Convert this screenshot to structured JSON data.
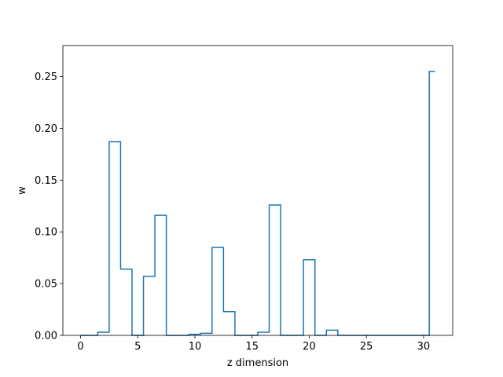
{
  "chart_data": {
    "type": "step",
    "title": "",
    "xlabel": "z dimension",
    "ylabel": "w",
    "xlim": [
      -1.55,
      32.55
    ],
    "ylim": [
      0,
      0.28
    ],
    "xticks": [
      0,
      5,
      10,
      15,
      20,
      25,
      30
    ],
    "xtick_labels": [
      "0",
      "5",
      "10",
      "15",
      "20",
      "25",
      "30"
    ],
    "yticks": [
      0.0,
      0.05,
      0.1,
      0.15,
      0.2,
      0.25
    ],
    "ytick_labels": [
      "0.00",
      "0.05",
      "0.10",
      "0.15",
      "0.20",
      "0.25"
    ],
    "step_where": "mid",
    "x": [
      0,
      1,
      2,
      3,
      4,
      5,
      6,
      7,
      8,
      9,
      10,
      11,
      12,
      13,
      14,
      15,
      16,
      17,
      18,
      19,
      20,
      21,
      22,
      23,
      24,
      25,
      26,
      27,
      28,
      29,
      30,
      31
    ],
    "values": [
      0.0,
      0.0,
      0.003,
      0.187,
      0.064,
      0.0,
      0.057,
      0.116,
      0.0,
      0.0,
      0.001,
      0.002,
      0.085,
      0.023,
      0.0,
      0.0,
      0.003,
      0.126,
      0.0,
      0.0,
      0.073,
      0.0,
      0.005,
      0.0,
      0.0,
      0.0,
      0.0,
      0.0,
      0.0,
      0.0,
      0.0,
      0.255
    ],
    "color": "#1f77b4",
    "grid": false,
    "legend": false
  }
}
